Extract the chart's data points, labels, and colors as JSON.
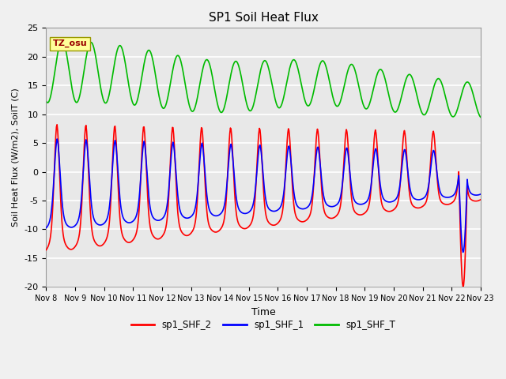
{
  "title": "SP1 Soil Heat Flux",
  "xlabel": "Time",
  "ylabel": "Soil Heat Flux (W/m2), SoilT (C)",
  "ylim": [
    -20,
    25
  ],
  "background_color": "#f0f0f0",
  "plot_bg_color": "#e8e8e8",
  "grid_color": "#ffffff",
  "timezone_label": "TZ_osu",
  "tz_box_color": "#ffff99",
  "tz_text_color": "#990000",
  "xtick_labels": [
    "Nov 8",
    "Nov 9",
    "Nov 10",
    "Nov 11",
    "Nov 12",
    "Nov 13",
    "Nov 14",
    "Nov 15",
    "Nov 16",
    "Nov 17",
    "Nov 18",
    "Nov 19",
    "Nov 20",
    "Nov 21",
    "Nov 22",
    "Nov 23"
  ],
  "legend": [
    "sp1_SHF_2",
    "sp1_SHF_1",
    "sp1_SHF_T"
  ],
  "legend_colors": [
    "#ff0000",
    "#0000ff",
    "#00bb00"
  ],
  "line_width": 1.2
}
